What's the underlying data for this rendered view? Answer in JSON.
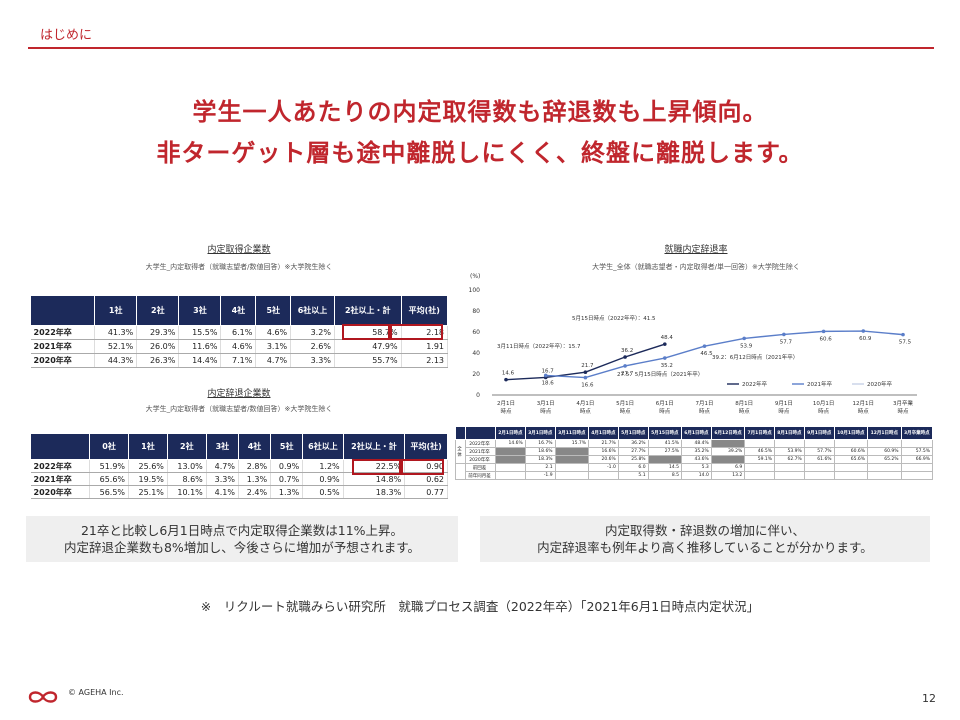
{
  "header": {
    "label": "はじめに"
  },
  "headline": {
    "line1": "学生一人あたりの内定取得数も辞退数も上昇傾向。",
    "line2": "非ターゲット層も途中離脱しにくく、終盤に離脱します。"
  },
  "offers_table": {
    "title": "内定取得企業数",
    "subtitle": "大学生_内定取得者（就職志望者/数値回答）※大学院生除く",
    "headers": [
      "",
      "1社",
      "2社",
      "3社",
      "4社",
      "5社",
      "6社以上",
      "2社以上・計",
      "平均(社)"
    ],
    "rows": [
      [
        "2022年卒",
        "41.3%",
        "29.3%",
        "15.5%",
        "6.1%",
        "4.6%",
        "3.2%",
        "58.7%",
        "2.18"
      ],
      [
        "2021年卒",
        "52.1%",
        "26.0%",
        "11.6%",
        "4.6%",
        "3.1%",
        "2.6%",
        "47.9%",
        "1.91"
      ],
      [
        "2020年卒",
        "44.3%",
        "26.3%",
        "14.4%",
        "7.1%",
        "4.7%",
        "3.3%",
        "55.7%",
        "2.13"
      ]
    ]
  },
  "declines_table": {
    "title": "内定辞退企業数",
    "subtitle": "大学生_内定取得者（就職志望者/数値回答）※大学院生除く",
    "headers": [
      "",
      "0社",
      "1社",
      "2社",
      "3社",
      "4社",
      "5社",
      "6社以上",
      "2社以上・計",
      "平均(社)"
    ],
    "rows": [
      [
        "2022年卒",
        "51.9%",
        "25.6%",
        "13.0%",
        "4.7%",
        "2.8%",
        "0.9%",
        "1.2%",
        "22.5%",
        "0.90"
      ],
      [
        "2021年卒",
        "65.6%",
        "19.5%",
        "8.6%",
        "3.3%",
        "1.3%",
        "0.7%",
        "0.9%",
        "14.8%",
        "0.62"
      ],
      [
        "2020年卒",
        "56.5%",
        "25.1%",
        "10.1%",
        "4.1%",
        "2.4%",
        "1.3%",
        "0.5%",
        "18.3%",
        "0.77"
      ]
    ]
  },
  "chart_data": {
    "type": "line",
    "title": "就職内定辞退率",
    "subtitle": "大学生_全体（就職志望者・内定取得者/単一回答）※大学院生除く",
    "ylabel": "(%)",
    "ylim": [
      0,
      100
    ],
    "yticks": [
      "0",
      "20",
      "40",
      "60",
      "80",
      "100"
    ],
    "categories": [
      "2月1日時点",
      "3月1日時点",
      "4月1日時点",
      "5月1日時点",
      "6月1日時点",
      "7月1日時点",
      "8月1日時点",
      "9月1日時点",
      "10月1日時点",
      "12月1日時点",
      "3月卒業時点"
    ],
    "series": [
      {
        "name": "2022年卒",
        "color": "#1c2a5a",
        "values": [
          14.6,
          16.7,
          21.7,
          36.2,
          48.4,
          null,
          null,
          null,
          null,
          null,
          null
        ]
      },
      {
        "name": "2021年卒",
        "color": "#5b7ec9",
        "values": [
          null,
          18.6,
          16.6,
          27.7,
          35.2,
          46.5,
          53.9,
          57.7,
          60.6,
          60.9,
          57.5
        ]
      },
      {
        "name": "2020年卒",
        "color": "#c8d1e6",
        "values": [
          null,
          null,
          null,
          null,
          null,
          null,
          null,
          null,
          null,
          null,
          null
        ]
      }
    ],
    "annotations": [
      "5月15日時点（2022年卒）：41.5",
      "3月11日時点（2022年卒）：15.7",
      "27.5：5月15日時点（2021年卒）",
      "39.2：6月12日時点（2021年卒）"
    ],
    "legend": "bottom-right"
  },
  "detail_table": {
    "headers": [
      "",
      "2月1日時点",
      "3月1日時点",
      "3月11日時点",
      "4月1日時点",
      "5月1日時点",
      "5月15日時点",
      "6月1日時点",
      "6月12日時点",
      "7月1日時点",
      "8月1日時点",
      "9月1日時点",
      "10月1日時点",
      "12月1日時点",
      "3月卒業時点"
    ],
    "side_label": "全体",
    "rows": [
      [
        "2022年卒",
        "14.6%",
        "16.7%",
        "15.7%",
        "21.7%",
        "36.2%",
        "41.5%",
        "48.4%",
        "",
        "",
        "",
        "",
        "",
        "",
        ""
      ],
      [
        "2021年卒",
        "",
        "18.6%",
        "",
        "16.6%",
        "27.7%",
        "27.5%",
        "35.2%",
        "39.2%",
        "46.5%",
        "53.9%",
        "57.7%",
        "60.6%",
        "60.9%",
        "57.5%"
      ],
      [
        "2020年卒",
        "",
        "18.3%",
        "",
        "20.6%",
        "25.8%",
        "",
        "43.6%",
        "",
        "59.1%",
        "62.7%",
        "61.6%",
        "65.6%",
        "65.2%",
        "66.9%"
      ],
      [
        "前回差",
        "",
        "2.1",
        "",
        "-1.0",
        "6.0",
        "14.5",
        "5.3",
        "6.9",
        "",
        "",
        "",
        "",
        "",
        ""
      ],
      [
        "前年同月差",
        "",
        "-1.9",
        "",
        "",
        "5.1",
        "8.5",
        "14.0",
        "13.2",
        "",
        "",
        "",
        "",
        "",
        ""
      ]
    ]
  },
  "notes": {
    "left": [
      "21卒と比較し6月1日時点で内定取得企業数は11%上昇。",
      "内定辞退企業数も8%増加し、今後さらに増加が予想されます。"
    ],
    "right": [
      "内定取得数・辞退数の増加に伴い、",
      "内定辞退率も例年より高く推移していることが分かります。"
    ]
  },
  "source": "※　リクルート就職みらい研究所　就職プロセス調査（2022年卒）「2021年6月1日時点内定状況」",
  "footer": {
    "copyright": "© AGEHA Inc.",
    "page": "12"
  }
}
